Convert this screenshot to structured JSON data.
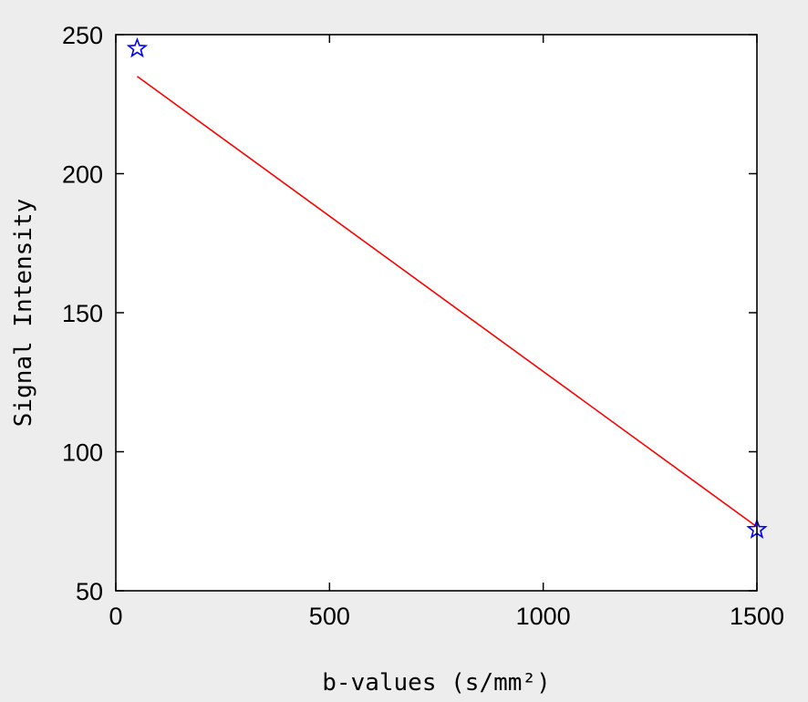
{
  "chart_data": {
    "type": "scatter",
    "title": "",
    "xlabel": "b-values (s/mm²)",
    "ylabel": "Signal Intensity",
    "xlim": [
      0,
      1500
    ],
    "ylim": [
      50,
      250
    ],
    "x_ticks": [
      "0",
      "500",
      "1000",
      "1500"
    ],
    "y_ticks": [
      "50",
      "100",
      "150",
      "200",
      "250"
    ],
    "x_tick_values": [
      0,
      500,
      1000,
      1500
    ],
    "y_tick_values": [
      50,
      100,
      150,
      200,
      250
    ],
    "grid": false,
    "legend": "none",
    "series": [
      {
        "type": "scatter",
        "marker": "pentagram",
        "color": "#0000ff",
        "x": [
          50,
          1500
        ],
        "y": [
          245,
          72
        ]
      },
      {
        "type": "line",
        "color": "#ff0000",
        "x": [
          50,
          1500
        ],
        "y": [
          235,
          73
        ]
      }
    ]
  }
}
